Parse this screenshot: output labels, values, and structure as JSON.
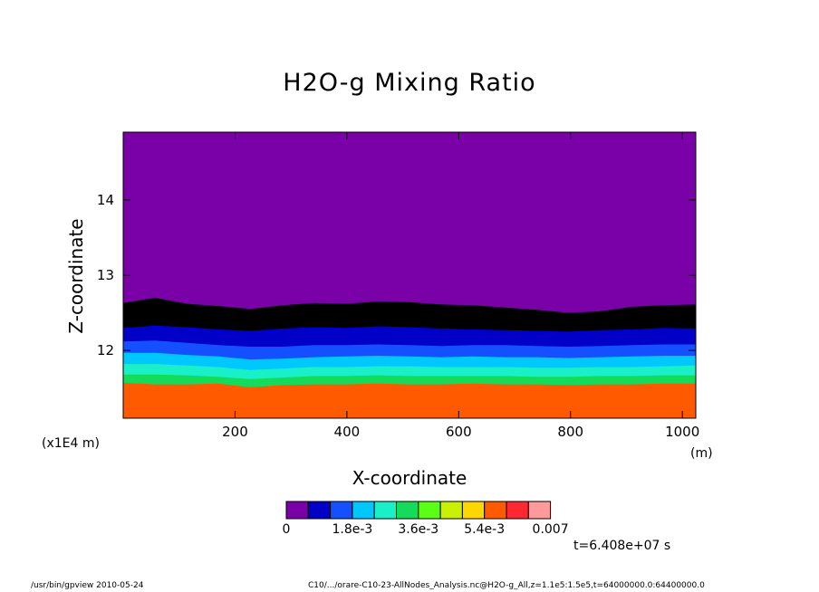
{
  "chart_data": {
    "type": "heatmap",
    "title": "H2O-g Mixing Ratio",
    "xlabel": "X-coordinate",
    "ylabel": "Z-coordinate",
    "x_unit": "(m)",
    "y_unit": "(x1E4 m)",
    "xlim": [
      0,
      1024
    ],
    "ylim": [
      11.1,
      14.9
    ],
    "x_ticks": [
      200,
      400,
      600,
      800,
      1000
    ],
    "x_tick_labels": [
      "200",
      "400",
      "600",
      "800",
      "1000"
    ],
    "y_ticks": [
      12,
      13,
      14
    ],
    "y_tick_labels": [
      "12",
      "13",
      "14"
    ],
    "colorbar": {
      "levels": [
        0,
        0.0006,
        0.0012,
        0.0018,
        0.0024,
        0.003,
        0.0036,
        0.0042,
        0.0048,
        0.0054,
        0.006,
        0.0066,
        0.007
      ],
      "colors": [
        "#7a00a8",
        "#0000c8",
        "#1450ff",
        "#00c8ff",
        "#19f0c8",
        "#14dc5a",
        "#5aff14",
        "#c8f000",
        "#ffd700",
        "#ff5a00",
        "#ff2832",
        "#ff9a9a"
      ],
      "labels": [
        "0",
        "1.8e-3",
        "3.6e-3",
        "5.4e-3",
        "0.007"
      ]
    },
    "contour_boundaries_z": [
      {
        "between": [
          5,
          6
        ],
        "z": [
          12.63,
          12.7,
          12.62,
          12.59,
          12.55,
          12.6,
          12.63,
          12.62,
          12.65,
          12.64,
          12.61,
          12.6,
          12.57,
          12.54,
          12.5,
          12.52,
          12.58,
          12.6,
          12.61
        ]
      },
      {
        "between": [
          4,
          5
        ],
        "z": [
          12.3,
          12.33,
          12.31,
          12.28,
          12.26,
          12.29,
          12.31,
          12.3,
          12.32,
          12.31,
          12.29,
          12.28,
          12.27,
          12.26,
          12.25,
          12.27,
          12.28,
          12.3,
          12.29
        ]
      },
      {
        "between": [
          3,
          4
        ],
        "z": [
          12.12,
          12.13,
          12.1,
          12.07,
          12.05,
          12.05,
          12.07,
          12.07,
          12.08,
          12.07,
          12.06,
          12.07,
          12.07,
          12.06,
          12.05,
          12.06,
          12.07,
          12.08,
          12.08
        ]
      },
      {
        "between": [
          2,
          3
        ],
        "z": [
          11.97,
          11.97,
          11.94,
          11.92,
          11.88,
          11.89,
          11.91,
          11.92,
          11.93,
          11.92,
          11.91,
          11.92,
          11.91,
          11.91,
          11.9,
          11.91,
          11.92,
          11.93,
          11.93
        ]
      },
      {
        "between": [
          1,
          2
        ],
        "z": [
          11.82,
          11.82,
          11.8,
          11.78,
          11.74,
          11.76,
          11.78,
          11.78,
          11.79,
          11.79,
          11.78,
          11.78,
          11.78,
          11.77,
          11.77,
          11.78,
          11.78,
          11.79,
          11.8
        ]
      },
      {
        "between": [
          0,
          1
        ],
        "z": [
          11.68,
          11.68,
          11.67,
          11.65,
          11.62,
          11.64,
          11.66,
          11.66,
          11.67,
          11.66,
          11.66,
          11.66,
          11.66,
          11.65,
          11.65,
          11.66,
          11.66,
          11.67,
          11.67
        ]
      },
      {
        "between": [
          -1,
          0
        ],
        "z": [
          11.57,
          11.55,
          11.55,
          11.56,
          11.51,
          11.54,
          11.55,
          11.55,
          11.56,
          11.55,
          11.55,
          11.56,
          11.55,
          11.55,
          11.54,
          11.55,
          11.55,
          11.56,
          11.56
        ]
      }
    ],
    "band_fill_indices": [
      4,
      5,
      4,
      3,
      2,
      1,
      0,
      -1
    ],
    "band_colors_by_index": {
      "4": "#0000c8",
      "3": "#1450ff",
      "2": "#00c8ff",
      "1": "#19f0c8",
      "0": "#14dc5a",
      "-1": "#ff5a00"
    },
    "upper_region_color": "#7a00a8"
  },
  "annotation": {
    "time": "t=6.408e+07 s"
  },
  "footer": {
    "left": "/usr/bin/gpview  2010-05-24",
    "right": "C10/.../orare-C10-23-AllNodes_Analysis.nc@H2O-g_All,z=1.1e5:1.5e5,t=64000000.0:64400000.0"
  }
}
